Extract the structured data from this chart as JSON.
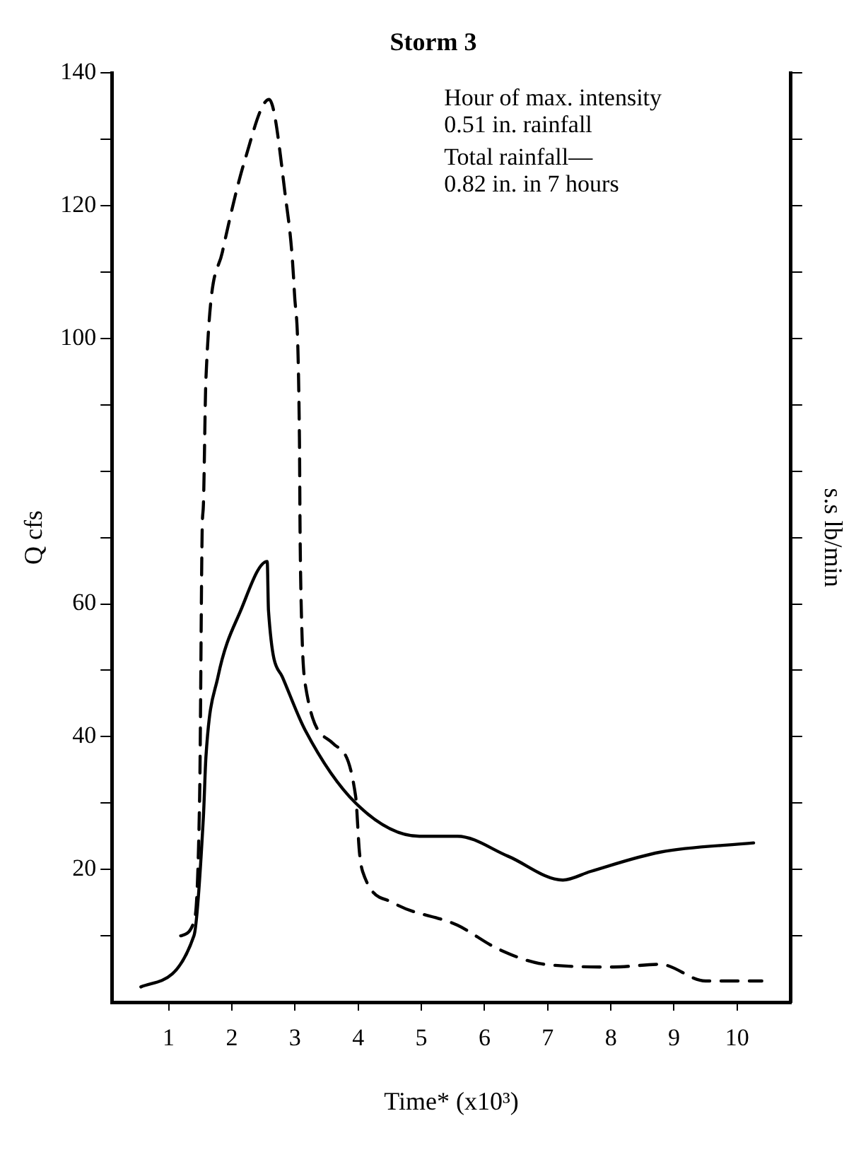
{
  "chart_data": {
    "type": "line",
    "title": "Storm 3",
    "xlabel": "Time* (x10³)",
    "ylabel": "Q cfs",
    "y2label": "s.s lb/min",
    "annotations": [
      "Hour of max. intensity\n0.51 in. rainfall",
      "Total rainfall—\n0.82 in. in 7 hours"
    ],
    "xlim": [
      0.1,
      10.85
    ],
    "ylim": [
      0,
      140
    ],
    "xticks": [
      1,
      2,
      3,
      4,
      5,
      6,
      7,
      8,
      9,
      10
    ],
    "yticks": [
      {
        "value": 10,
        "label": null
      },
      20,
      {
        "value": 30,
        "label": null
      },
      40,
      {
        "value": 50,
        "label": null
      },
      60,
      {
        "value": 70,
        "label": null
      },
      {
        "value": 80,
        "label": null
      },
      {
        "value": 90,
        "label": null
      },
      100,
      {
        "value": 110,
        "label": null
      },
      120,
      {
        "value": 130,
        "label": null
      },
      140
    ],
    "grid": false,
    "legend": false,
    "marker": "none",
    "series": [
      {
        "color": "#000000",
        "line_style": "solid",
        "x": [
          0.56,
          1.4,
          1.55,
          1.59,
          1.78,
          2.14,
          2.56,
          2.58,
          2.8,
          3.16,
          3.96,
          4.97,
          5.57,
          6.37,
          7.24,
          7.68,
          8.78,
          10.26
        ],
        "values": [
          2.3,
          10,
          28,
          37,
          49,
          59,
          66.4,
          59,
          49,
          41,
          30,
          25,
          25,
          22,
          18.4,
          19.7,
          22.6,
          24
        ]
      },
      {
        "color": "#000000",
        "line_style": "dashed",
        "x": [
          1.19,
          1.38,
          1.49,
          1.53,
          1.55,
          1.59,
          1.85,
          2.21,
          2.59,
          2.84,
          2.99,
          3.07,
          3.08,
          3.1,
          3.16,
          3.6,
          3.96,
          4.02,
          4.07,
          4.55,
          5.57,
          6.22,
          6.96,
          8.04,
          8.78,
          9.5,
          10.39
        ],
        "values": [
          10,
          11.6,
          31,
          71,
          75,
          94,
          113,
          127,
          136,
          122,
          107,
          85,
          71,
          59,
          48,
          39,
          31,
          22.6,
          19.7,
          15,
          11.6,
          8,
          5.7,
          5.3,
          5.7,
          3.2,
          3.2
        ]
      }
    ]
  }
}
